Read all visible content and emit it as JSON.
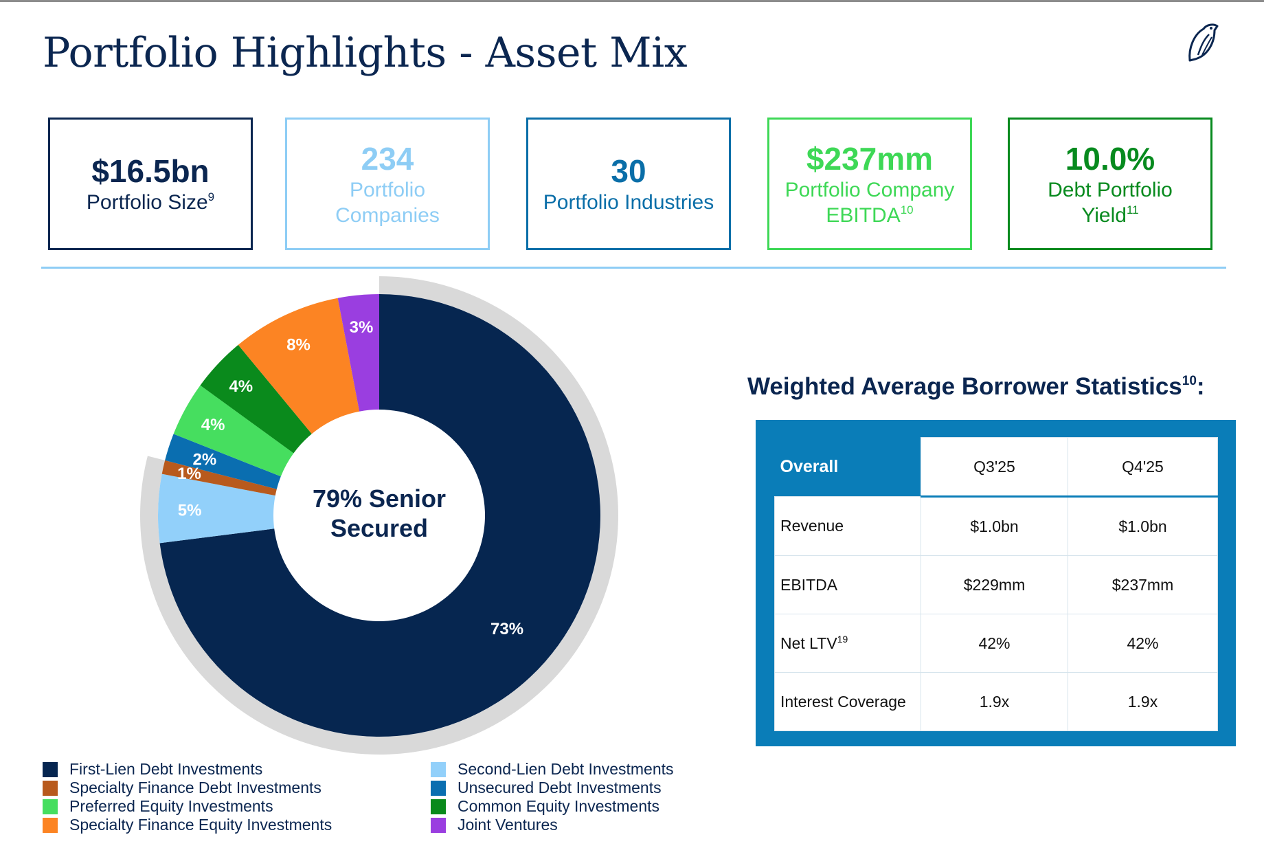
{
  "header": {
    "title": "Portfolio Highlights - Asset Mix",
    "logo_icon": "bird-logo-icon"
  },
  "stats": [
    {
      "value": "$16.5bn",
      "label": "Portfolio Size",
      "sup": "9",
      "color": "#0b2650",
      "border": "#0b2650"
    },
    {
      "value": "234",
      "label": "Portfolio Companies",
      "sup": "",
      "color": "#8ecdf5",
      "border": "#8ecdf5"
    },
    {
      "value": "30",
      "label": "Portfolio Industries",
      "sup": "",
      "color": "#0a6ea8",
      "border": "#0a6ea8"
    },
    {
      "value": "$237mm",
      "label": "Portfolio Company EBITDA",
      "sup": "10",
      "color": "#3ed856",
      "border": "#3ed856"
    },
    {
      "value": "10.0%",
      "label": "Debt Portfolio Yield",
      "sup": "11",
      "color": "#078a1e",
      "border": "#078a1e"
    }
  ],
  "chart_data": {
    "type": "pie",
    "variant": "donut",
    "center_label": [
      "79% Senior",
      "Secured"
    ],
    "senior_secured_pct": 79,
    "outer_ring_label": "Senior Secured",
    "slices": [
      {
        "name": "First-Lien Debt Investments",
        "value": 73,
        "label": "73%",
        "color": "#062650"
      },
      {
        "name": "Second-Lien Debt Investments",
        "value": 5,
        "label": "5%",
        "color": "#92d0fa"
      },
      {
        "name": "Specialty Finance Debt Investments",
        "value": 1,
        "label": "1%",
        "color": "#b85a1d"
      },
      {
        "name": "Unsecured Debt Investments",
        "value": 2,
        "label": "2%",
        "color": "#0a6eb0"
      },
      {
        "name": "Preferred Equity Investments",
        "value": 4,
        "label": "4%",
        "color": "#46de5f"
      },
      {
        "name": "Common Equity Investments",
        "value": 4,
        "label": "4%",
        "color": "#0a8a1c"
      },
      {
        "name": "Specialty Finance Equity Investments",
        "value": 8,
        "label": "8%",
        "color": "#fc8423"
      },
      {
        "name": "Joint Ventures",
        "value": 3,
        "label": "3%",
        "color": "#9a3ee0"
      }
    ],
    "legend": [
      {
        "name": "First-Lien Debt Investments",
        "color": "#062650"
      },
      {
        "name": "Second-Lien Debt Investments",
        "color": "#92d0fa"
      },
      {
        "name": "Specialty Finance Debt Investments",
        "color": "#b85a1d"
      },
      {
        "name": "Unsecured Debt Investments",
        "color": "#0a6eb0"
      },
      {
        "name": "Preferred Equity Investments",
        "color": "#46de5f"
      },
      {
        "name": "Common Equity Investments",
        "color": "#0a8a1c"
      },
      {
        "name": "Specialty Finance Equity Investments",
        "color": "#fc8423"
      },
      {
        "name": "Joint Ventures",
        "color": "#9a3ee0"
      }
    ],
    "legend_placement": "bottom"
  },
  "borrower_stats": {
    "title": "Weighted Average Borrower Statistics",
    "title_sup": "10",
    "suffix": ":",
    "header": {
      "overall": "Overall",
      "cols": [
        "Q3'25",
        "Q4'25"
      ]
    },
    "rows": [
      {
        "metric": "Revenue",
        "sup": "",
        "values": [
          "$1.0bn",
          "$1.0bn"
        ]
      },
      {
        "metric": "EBITDA",
        "sup": "",
        "values": [
          "$229mm",
          "$237mm"
        ]
      },
      {
        "metric": "Net LTV",
        "sup": "19",
        "values": [
          "42%",
          "42%"
        ]
      },
      {
        "metric": "Interest Coverage",
        "sup": "",
        "values": [
          "1.9x",
          "1.9x"
        ]
      }
    ]
  },
  "colors": {
    "navy": "#0b2650",
    "panel_blue": "#0a7db8",
    "divider": "#8ecdf5",
    "outer_ring": "#d9d9d9"
  }
}
